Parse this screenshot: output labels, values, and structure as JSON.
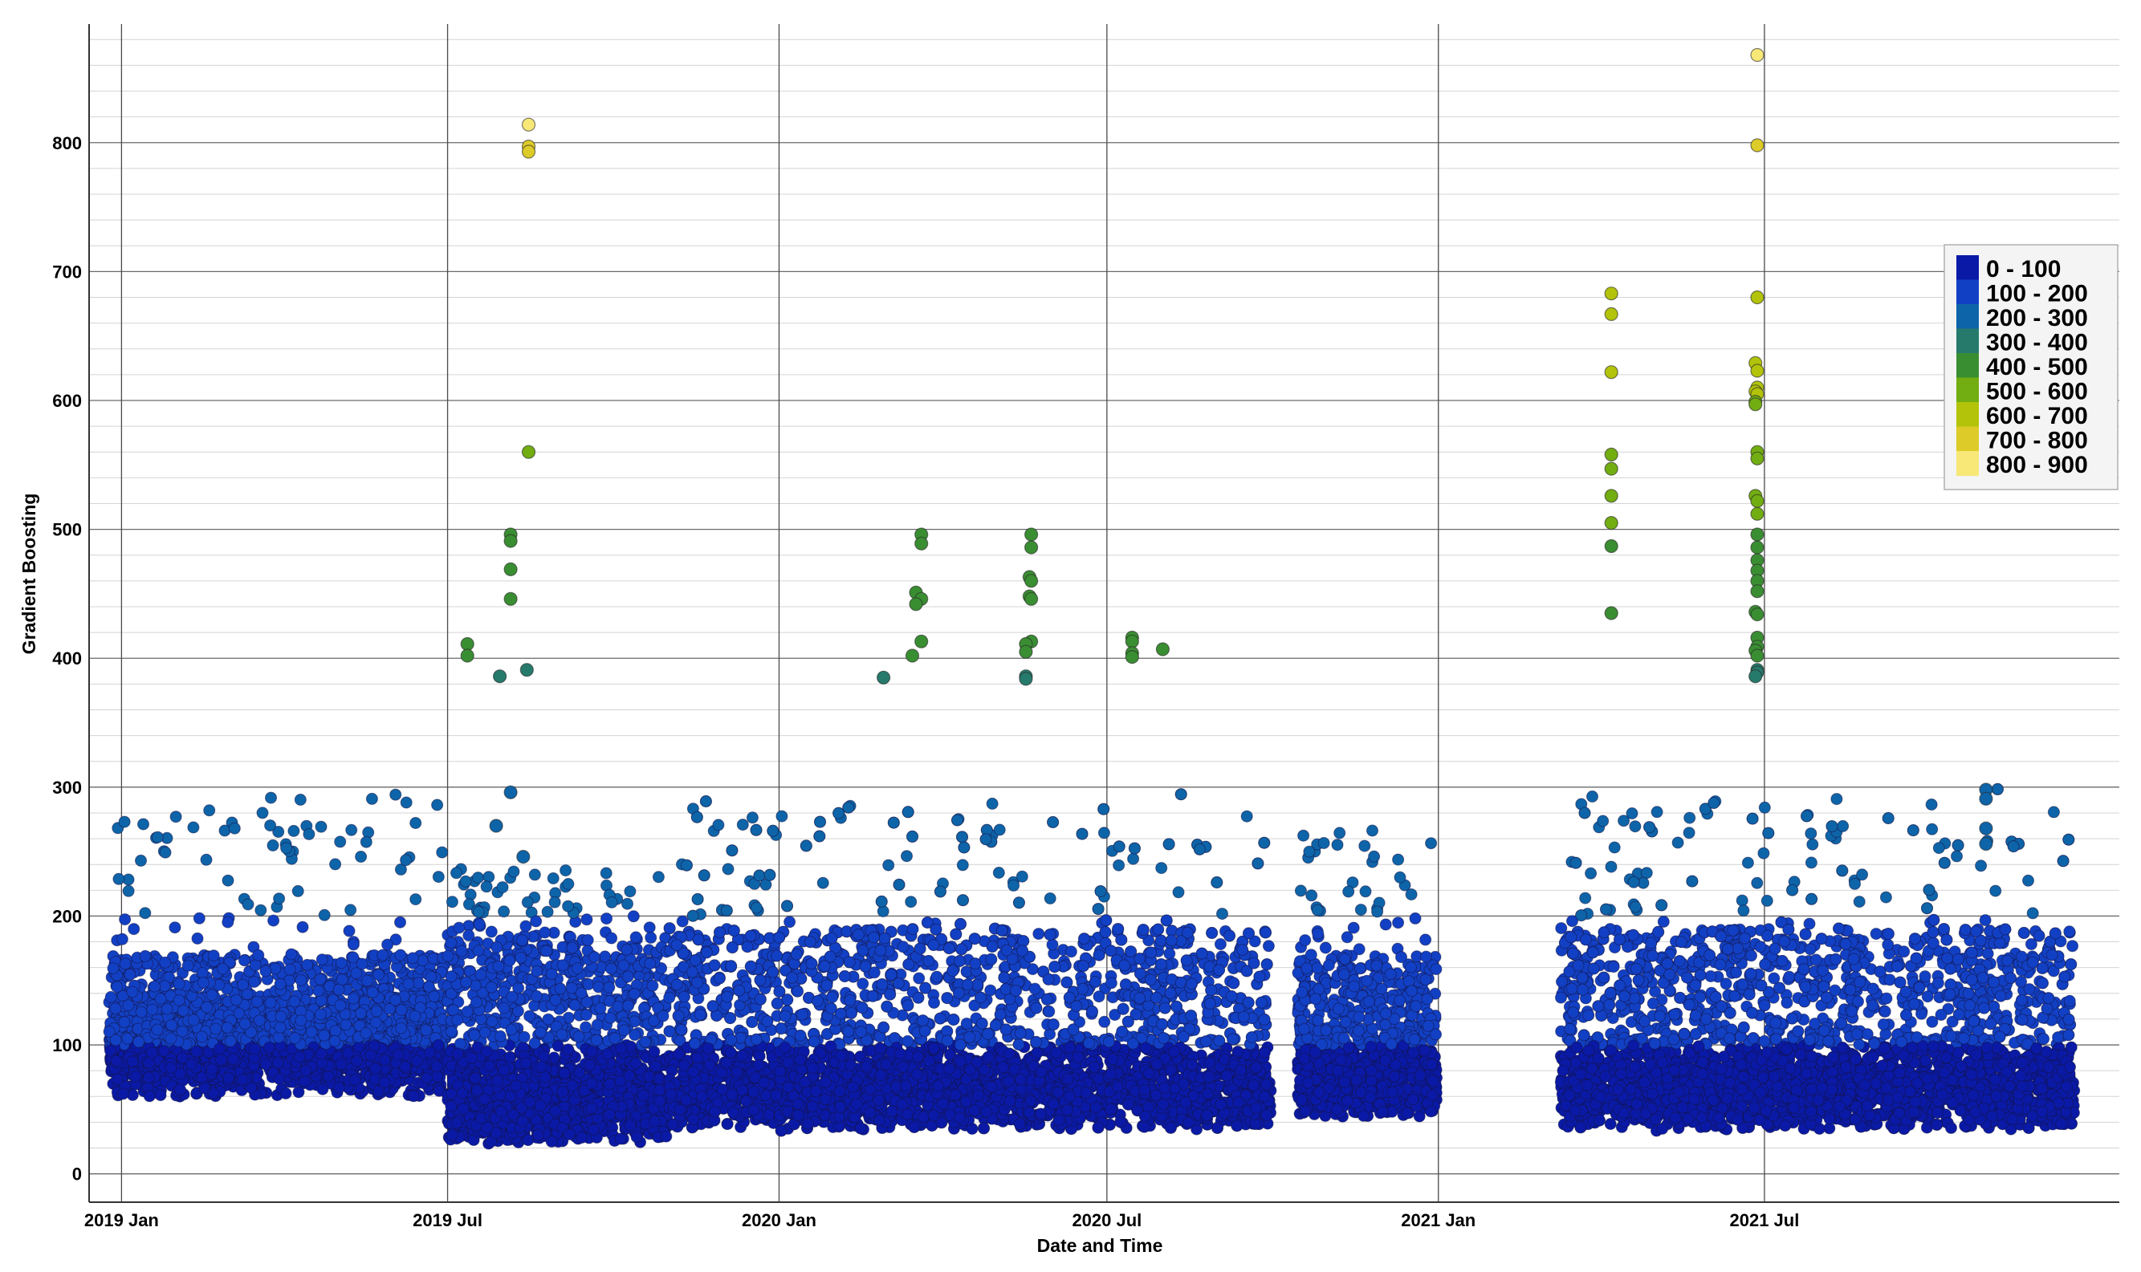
{
  "chart_data": {
    "type": "scatter",
    "title": "",
    "xlabel": "Date and Time",
    "ylabel": "Gradient Boosting",
    "x_ticks": [
      "2019 Jan",
      "2019 Jul",
      "2020 Jan",
      "2020 Jul",
      "2021 Jan",
      "2021 Jul"
    ],
    "x_tick_dates": [
      "2019-01-01",
      "2019-07-01",
      "2020-01-01",
      "2020-07-01",
      "2021-01-01",
      "2021-07-01"
    ],
    "y_ticks": [
      "0",
      "100",
      "200",
      "300",
      "400",
      "500",
      "600",
      "700",
      "800"
    ],
    "xlim": [
      "2018-12-14",
      "2022-01-14"
    ],
    "ylim": [
      -22,
      892
    ],
    "grid": true,
    "legend": {
      "position": "right",
      "bins": [
        {
          "label": "0 - 100",
          "color": "#0a1aa6"
        },
        {
          "label": "100 - 200",
          "color": "#1240c4"
        },
        {
          "label": "200 - 300",
          "color": "#0e64a8"
        },
        {
          "label": "300 - 400",
          "color": "#267a6c"
        },
        {
          "label": "400 - 500",
          "color": "#3a8e32"
        },
        {
          "label": "500 - 600",
          "color": "#72ad12"
        },
        {
          "label": "600 - 700",
          "color": "#b2c30a"
        },
        {
          "label": "700 - 800",
          "color": "#dccb28"
        },
        {
          "label": "800 - 900",
          "color": "#f7e878"
        }
      ]
    },
    "outliers": [
      {
        "x": "2019-08-15",
        "y": 814
      },
      {
        "x": "2019-08-15",
        "y": 797
      },
      {
        "x": "2019-08-15",
        "y": 793
      },
      {
        "x": "2019-08-15",
        "y": 560
      },
      {
        "x": "2019-08-05",
        "y": 496
      },
      {
        "x": "2019-08-05",
        "y": 491
      },
      {
        "x": "2019-08-05",
        "y": 469
      },
      {
        "x": "2019-08-05",
        "y": 446
      },
      {
        "x": "2019-07-12",
        "y": 411
      },
      {
        "x": "2019-07-12",
        "y": 402
      },
      {
        "x": "2019-07-30",
        "y": 386
      },
      {
        "x": "2019-08-14",
        "y": 391
      },
      {
        "x": "2019-08-05",
        "y": 296
      },
      {
        "x": "2019-07-28",
        "y": 270
      },
      {
        "x": "2019-08-12",
        "y": 246
      },
      {
        "x": "2020-03-20",
        "y": 496
      },
      {
        "x": "2020-03-20",
        "y": 489
      },
      {
        "x": "2020-03-17",
        "y": 451
      },
      {
        "x": "2020-03-20",
        "y": 446
      },
      {
        "x": "2020-03-17",
        "y": 442
      },
      {
        "x": "2020-03-20",
        "y": 413
      },
      {
        "x": "2020-03-15",
        "y": 402
      },
      {
        "x": "2020-02-28",
        "y": 385
      },
      {
        "x": "2020-05-20",
        "y": 496
      },
      {
        "x": "2020-05-20",
        "y": 486
      },
      {
        "x": "2020-05-19",
        "y": 463
      },
      {
        "x": "2020-05-20",
        "y": 460
      },
      {
        "x": "2020-05-19",
        "y": 448
      },
      {
        "x": "2020-05-20",
        "y": 446
      },
      {
        "x": "2020-05-20",
        "y": 413
      },
      {
        "x": "2020-05-17",
        "y": 411
      },
      {
        "x": "2020-05-17",
        "y": 405
      },
      {
        "x": "2020-05-17",
        "y": 386
      },
      {
        "x": "2020-05-17",
        "y": 384
      },
      {
        "x": "2020-07-15",
        "y": 416
      },
      {
        "x": "2020-07-15",
        "y": 413
      },
      {
        "x": "2020-07-15",
        "y": 404
      },
      {
        "x": "2020-07-15",
        "y": 401
      },
      {
        "x": "2020-08-01",
        "y": 407
      },
      {
        "x": "2021-04-07",
        "y": 683
      },
      {
        "x": "2021-04-07",
        "y": 667
      },
      {
        "x": "2021-04-07",
        "y": 622
      },
      {
        "x": "2021-04-07",
        "y": 558
      },
      {
        "x": "2021-04-07",
        "y": 547
      },
      {
        "x": "2021-04-07",
        "y": 526
      },
      {
        "x": "2021-04-07",
        "y": 505
      },
      {
        "x": "2021-04-07",
        "y": 487
      },
      {
        "x": "2021-04-07",
        "y": 435
      },
      {
        "x": "2021-06-27",
        "y": 868
      },
      {
        "x": "2021-06-27",
        "y": 798
      },
      {
        "x": "2021-06-27",
        "y": 680
      },
      {
        "x": "2021-06-26",
        "y": 629
      },
      {
        "x": "2021-06-27",
        "y": 623
      },
      {
        "x": "2021-06-27",
        "y": 610
      },
      {
        "x": "2021-06-26",
        "y": 607
      },
      {
        "x": "2021-06-27",
        "y": 605
      },
      {
        "x": "2021-06-26",
        "y": 599
      },
      {
        "x": "2021-06-26",
        "y": 597
      },
      {
        "x": "2021-06-27",
        "y": 560
      },
      {
        "x": "2021-06-27",
        "y": 555
      },
      {
        "x": "2021-06-26",
        "y": 526
      },
      {
        "x": "2021-06-27",
        "y": 522
      },
      {
        "x": "2021-06-27",
        "y": 512
      },
      {
        "x": "2021-06-27",
        "y": 496
      },
      {
        "x": "2021-06-27",
        "y": 486
      },
      {
        "x": "2021-06-27",
        "y": 476
      },
      {
        "x": "2021-06-27",
        "y": 468
      },
      {
        "x": "2021-06-27",
        "y": 460
      },
      {
        "x": "2021-06-27",
        "y": 452
      },
      {
        "x": "2021-06-26",
        "y": 436
      },
      {
        "x": "2021-06-27",
        "y": 434
      },
      {
        "x": "2021-06-27",
        "y": 416
      },
      {
        "x": "2021-06-27",
        "y": 409
      },
      {
        "x": "2021-06-26",
        "y": 406
      },
      {
        "x": "2021-06-27",
        "y": 402
      },
      {
        "x": "2021-06-27",
        "y": 391
      },
      {
        "x": "2021-06-27",
        "y": 389
      },
      {
        "x": "2021-06-26",
        "y": 386
      },
      {
        "x": "2021-11-01",
        "y": 298
      },
      {
        "x": "2021-11-01",
        "y": 291
      },
      {
        "x": "2021-11-01",
        "y": 268
      },
      {
        "x": "2021-11-01",
        "y": 256
      }
    ],
    "series_bulk": {
      "name": "",
      "note": "dense hourly predictions; displayed as clustered points",
      "segments": [
        {
          "x_start": "2018-12-25",
          "x_end": "2019-06-30",
          "y_low": 47,
          "y_high": 170,
          "y_peak": 296
        },
        {
          "x_start": "2019-07-01",
          "x_end": "2019-10-31",
          "y_low": 0,
          "y_high": 185,
          "y_peak": 240
        },
        {
          "x_start": "2019-11-01",
          "x_end": "2020-09-30",
          "y_low": 10,
          "y_high": 190,
          "y_peak": 296
        },
        {
          "x_start": "2020-10-15",
          "x_end": "2020-12-31",
          "y_low": 20,
          "y_high": 170,
          "y_peak": 275
        },
        {
          "x_start": "2021-03-10",
          "x_end": "2021-12-20",
          "y_low": 10,
          "y_high": 190,
          "y_peak": 300
        }
      ]
    }
  }
}
